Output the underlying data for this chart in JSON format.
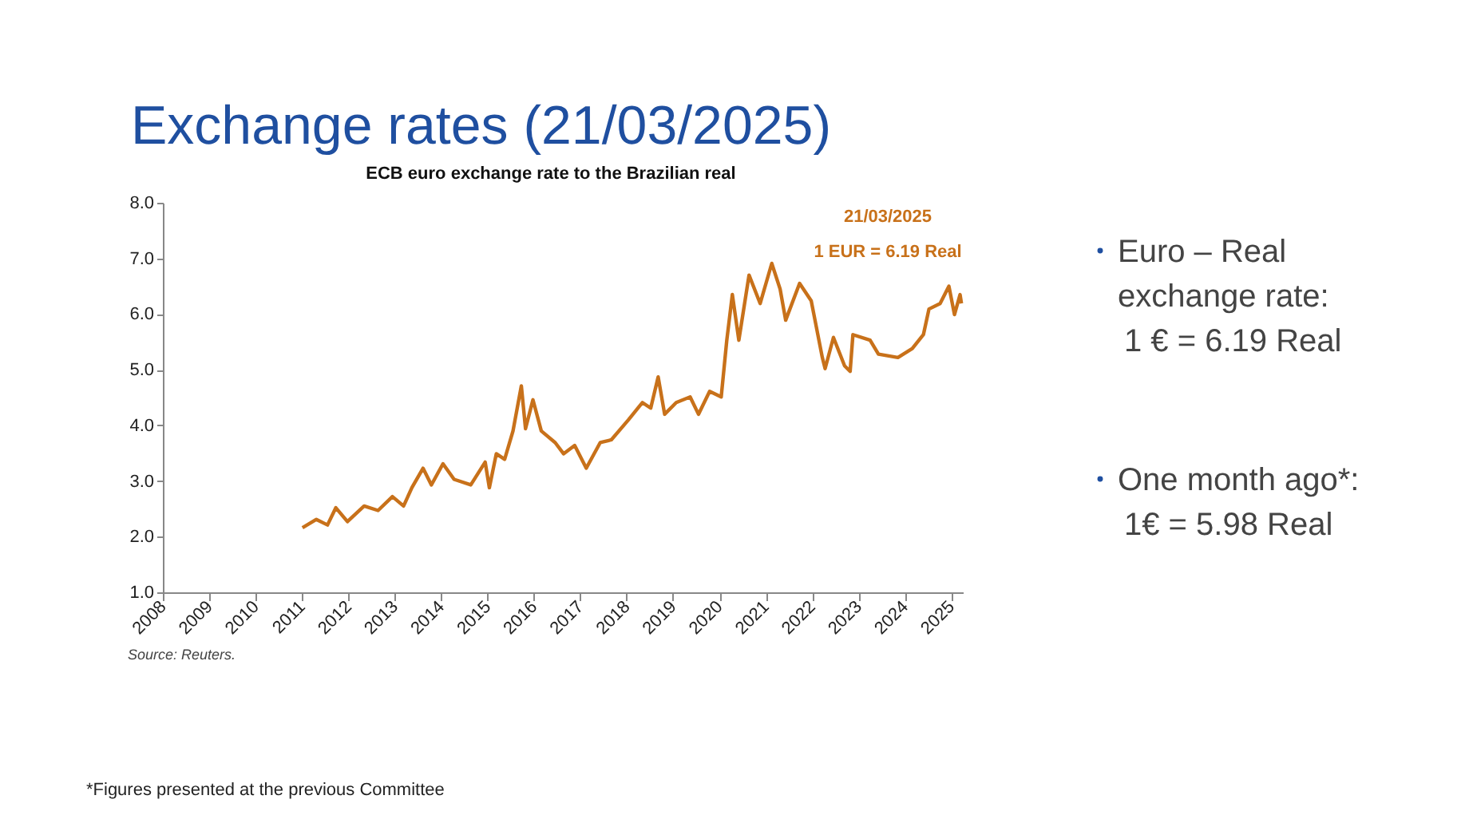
{
  "chart_data": {
    "type": "line",
    "title": "Exchange rates (21/03/2025)",
    "subtitle": "ECB euro exchange rate to the Brazilian real",
    "xlim": [
      2008,
      2025.25
    ],
    "xticks": [
      2008,
      2009,
      2010,
      2011,
      2012,
      2013,
      2014,
      2015,
      2016,
      2017,
      2018,
      2019,
      2020,
      2021,
      2022,
      2023,
      2024,
      2025
    ],
    "ylim": [
      1.0,
      8.0
    ],
    "yticks": [
      {
        "value": 1,
        "label": "1.0"
      },
      {
        "value": 2,
        "label": "2.0"
      },
      {
        "value": 3,
        "label": "3.0"
      },
      {
        "value": 4,
        "label": "4.0"
      },
      {
        "value": 5,
        "label": "5.0"
      },
      {
        "value": 6,
        "label": "6.0"
      },
      {
        "value": 7,
        "label": "7.0"
      },
      {
        "value": 8,
        "label": "8.0"
      }
    ],
    "grid": false,
    "marker": "none",
    "line_style": "solid",
    "series": [
      {
        "color": "#c8711a",
        "x": [
          2011.01,
          2011.31,
          2011.55,
          2011.73,
          2011.98,
          2012.34,
          2012.64,
          2012.95,
          2013.19,
          2013.37,
          2013.61,
          2013.79,
          2014.04,
          2014.28,
          2014.64,
          2014.95,
          2015.04,
          2015.19,
          2015.37,
          2015.55,
          2015.73,
          2015.82,
          2015.98,
          2016.16,
          2016.46,
          2016.64,
          2016.88,
          2017.13,
          2017.43,
          2017.67,
          2018.04,
          2018.34,
          2018.52,
          2018.68,
          2018.82,
          2019.07,
          2019.37,
          2019.55,
          2019.79,
          2020.04,
          2020.16,
          2020.28,
          2020.42,
          2020.64,
          2020.88,
          2021.13,
          2021.31,
          2021.43,
          2021.73,
          2021.98,
          2022.22,
          2022.28,
          2022.46,
          2022.7,
          2022.82,
          2022.88,
          2023.25,
          2023.43,
          2023.85,
          2024.16,
          2024.4,
          2024.52,
          2024.76,
          2024.95,
          2025.07,
          2025.19,
          2025.22
        ],
        "values": [
          2.16,
          2.31,
          2.21,
          2.52,
          2.27,
          2.55,
          2.47,
          2.72,
          2.55,
          2.88,
          3.23,
          2.93,
          3.31,
          3.03,
          2.93,
          3.34,
          2.88,
          3.49,
          3.39,
          3.9,
          4.71,
          3.94,
          4.46,
          3.9,
          3.69,
          3.49,
          3.64,
          3.23,
          3.69,
          3.74,
          4.1,
          4.41,
          4.31,
          4.87,
          4.2,
          4.41,
          4.51,
          4.2,
          4.61,
          4.51,
          5.53,
          6.35,
          5.53,
          6.7,
          6.19,
          6.91,
          6.45,
          5.89,
          6.55,
          6.24,
          5.22,
          5.02,
          5.58,
          5.07,
          4.97,
          5.63,
          5.53,
          5.28,
          5.22,
          5.38,
          5.63,
          6.09,
          6.19,
          6.5,
          5.99,
          6.35,
          6.19
        ]
      }
    ],
    "annotations": [
      "21/03/2025",
      "1 EUR = 6.19 Real",
      "Source: Reuters.",
      "Euro – Real",
      "exchange rate:",
      "1 € = 6.19 Real",
      "One month ago*:",
      "1€ = 5.98 Real",
      "*Figures presented at the previous Committee"
    ]
  }
}
